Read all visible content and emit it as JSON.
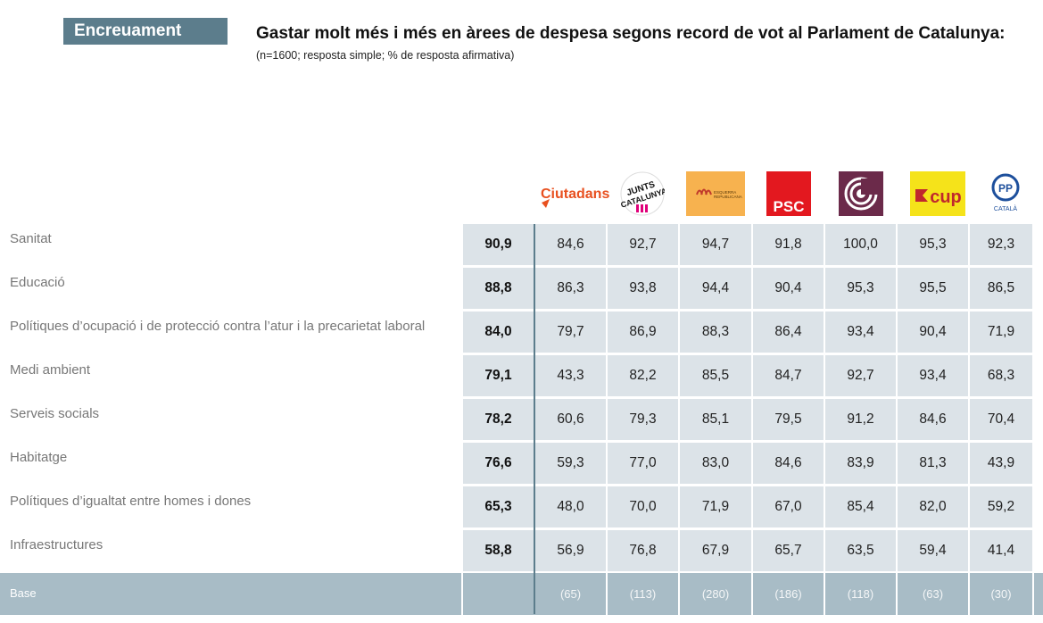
{
  "header": {
    "tag": "Encreuament",
    "title": "Gastar molt més i més en àrees de despesa segons record de vot al Parlament de Catalunya:",
    "subtitle": "(n=1600; resposta simple; % de resposta afirmativa)"
  },
  "parties": [
    {
      "name": "Ciutadans",
      "logo_text": "Ciutadans",
      "color": "#e8501f"
    },
    {
      "name": "Junts per Catalunya",
      "logo_text": "JUNTS PER CATALUNYA",
      "color": "#111111"
    },
    {
      "name": "Esquerra Republicana",
      "logo_text": "ESQUERRA REPUBLICANA",
      "color": "#f7b24f"
    },
    {
      "name": "PSC",
      "logo_text": "PSC",
      "color": "#e3181f"
    },
    {
      "name": "Catalunya en Comú-Podem",
      "logo_text": "",
      "color": "#6b2a4a"
    },
    {
      "name": "CUP",
      "logo_text": "cup",
      "color": "#f5e31a"
    },
    {
      "name": "PP",
      "logo_text": "PP",
      "sublabel": "CATALÀ",
      "color": "#1d4f9c"
    }
  ],
  "rows": [
    {
      "label": "Sanitat",
      "total": "90,9",
      "values": [
        "84,6",
        "92,7",
        "94,7",
        "91,8",
        "100,0",
        "95,3",
        "92,3"
      ]
    },
    {
      "label": "Educació",
      "total": "88,8",
      "values": [
        "86,3",
        "93,8",
        "94,4",
        "90,4",
        "95,3",
        "95,5",
        "86,5"
      ]
    },
    {
      "label": "Polítiques d’ocupació i de protecció contra l’atur i la precarietat laboral",
      "total": "84,0",
      "values": [
        "79,7",
        "86,9",
        "88,3",
        "86,4",
        "93,4",
        "90,4",
        "71,9"
      ]
    },
    {
      "label": "Medi ambient",
      "total": "79,1",
      "values": [
        "43,3",
        "82,2",
        "85,5",
        "84,7",
        "92,7",
        "93,4",
        "68,3"
      ]
    },
    {
      "label": "Serveis socials",
      "total": "78,2",
      "values": [
        "60,6",
        "79,3",
        "85,1",
        "79,5",
        "91,2",
        "84,6",
        "70,4"
      ]
    },
    {
      "label": "Habitatge",
      "total": "76,6",
      "values": [
        "59,3",
        "77,0",
        "83,0",
        "84,6",
        "83,9",
        "81,3",
        "43,9"
      ]
    },
    {
      "label": "Polítiques d’igualtat entre homes i dones",
      "total": "65,3",
      "values": [
        "48,0",
        "70,0",
        "71,9",
        "67,0",
        "85,4",
        "82,0",
        "59,2"
      ]
    },
    {
      "label": "Infraestructures",
      "total": "58,8",
      "values": [
        "56,9",
        "76,8",
        "67,9",
        "65,7",
        "63,5",
        "59,4",
        "41,4"
      ]
    }
  ],
  "base": {
    "label": "Base",
    "values": [
      "(65)",
      "(113)",
      "(280)",
      "(186)",
      "(118)",
      "(63)",
      "(30)"
    ]
  }
}
